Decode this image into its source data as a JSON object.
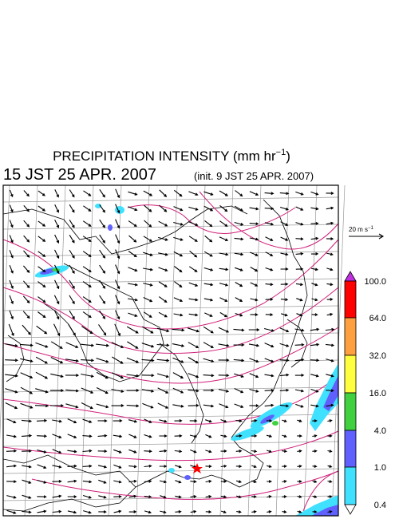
{
  "header": {
    "title": "PRECIPITATION INTENSITY (mm hr",
    "title_sup": "−1",
    "title_end": ")",
    "valid_time": "15 JST 25 APR. 2007",
    "init_time": "(init. 9 JST 25 APR. 2007)"
  },
  "vector_scale": {
    "label": "20 m s",
    "label_sup": "−1"
  },
  "colorbar": {
    "labels": [
      "100.0",
      "64.0",
      "32.0",
      "16.0",
      "4.0",
      "1.0",
      "0.4"
    ]
  }
}
